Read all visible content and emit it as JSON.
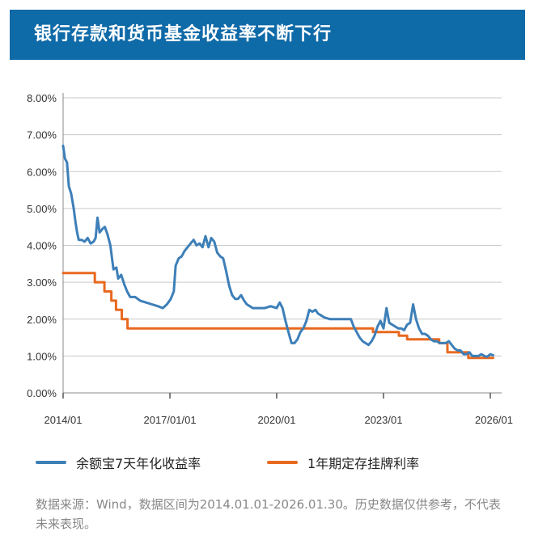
{
  "header": {
    "title": "银行存款和货币基金收益率不断下行"
  },
  "chart_data": {
    "type": "line",
    "title": "",
    "xlabel": "",
    "ylabel": "",
    "ylim": [
      0,
      8
    ],
    "xlim": [
      "2014-01-01",
      "2026-01-30"
    ],
    "grid": true,
    "legend_position": "bottom",
    "y_ticks": [
      "0.00%",
      "1.00%",
      "2.00%",
      "3.00%",
      "4.00%",
      "5.00%",
      "6.00%",
      "7.00%",
      "8.00%"
    ],
    "y_tick_values": [
      0,
      1,
      2,
      3,
      4,
      5,
      6,
      7,
      8
    ],
    "x_ticks": [
      "2014/01",
      "2017/01/01",
      "2020/01",
      "2023/01",
      "2026/01"
    ],
    "x_tick_dates": [
      "2014-01-01",
      "2017-01-01",
      "2020-01-01",
      "2023-01-01",
      "2026-01-01"
    ],
    "series": [
      {
        "name": "余额宝7天年化收益率",
        "color": "#3d7fb8",
        "points": [
          [
            "2014-01-01",
            6.7
          ],
          [
            "2014-01-20",
            6.35
          ],
          [
            "2014-02-10",
            6.25
          ],
          [
            "2014-03-01",
            5.6
          ],
          [
            "2014-03-25",
            5.4
          ],
          [
            "2014-04-20",
            5.0
          ],
          [
            "2014-05-10",
            4.6
          ],
          [
            "2014-05-25",
            4.35
          ],
          [
            "2014-06-10",
            4.15
          ],
          [
            "2014-07-10",
            4.15
          ],
          [
            "2014-08-10",
            4.1
          ],
          [
            "2014-09-10",
            4.2
          ],
          [
            "2014-10-10",
            4.05
          ],
          [
            "2014-11-10",
            4.1
          ],
          [
            "2014-12-01",
            4.2
          ],
          [
            "2014-12-20",
            4.75
          ],
          [
            "2015-01-10",
            4.35
          ],
          [
            "2015-02-10",
            4.45
          ],
          [
            "2015-03-05",
            4.5
          ],
          [
            "2015-04-01",
            4.3
          ],
          [
            "2015-05-01",
            4.0
          ],
          [
            "2015-06-01",
            3.35
          ],
          [
            "2015-07-01",
            3.4
          ],
          [
            "2015-07-20",
            3.1
          ],
          [
            "2015-08-20",
            3.2
          ],
          [
            "2015-09-20",
            2.95
          ],
          [
            "2015-10-20",
            2.75
          ],
          [
            "2015-11-20",
            2.6
          ],
          [
            "2016-01-10",
            2.6
          ],
          [
            "2016-03-01",
            2.5
          ],
          [
            "2016-05-01",
            2.45
          ],
          [
            "2016-07-01",
            2.4
          ],
          [
            "2016-09-01",
            2.35
          ],
          [
            "2016-10-20",
            2.3
          ],
          [
            "2016-12-01",
            2.4
          ],
          [
            "2017-01-10",
            2.55
          ],
          [
            "2017-02-10",
            2.75
          ],
          [
            "2017-03-01",
            3.45
          ],
          [
            "2017-04-01",
            3.65
          ],
          [
            "2017-05-01",
            3.7
          ],
          [
            "2017-06-01",
            3.85
          ],
          [
            "2017-07-01",
            3.95
          ],
          [
            "2017-08-01",
            4.05
          ],
          [
            "2017-09-01",
            4.15
          ],
          [
            "2017-10-01",
            4.0
          ],
          [
            "2017-11-01",
            4.05
          ],
          [
            "2017-12-01",
            3.95
          ],
          [
            "2018-01-01",
            4.25
          ],
          [
            "2018-02-01",
            3.95
          ],
          [
            "2018-03-01",
            4.2
          ],
          [
            "2018-04-01",
            4.1
          ],
          [
            "2018-05-01",
            3.8
          ],
          [
            "2018-06-01",
            3.7
          ],
          [
            "2018-07-01",
            3.65
          ],
          [
            "2018-08-01",
            3.3
          ],
          [
            "2018-09-01",
            2.9
          ],
          [
            "2018-10-01",
            2.65
          ],
          [
            "2018-11-01",
            2.55
          ],
          [
            "2018-12-01",
            2.55
          ],
          [
            "2019-01-01",
            2.65
          ],
          [
            "2019-02-01",
            2.5
          ],
          [
            "2019-03-01",
            2.4
          ],
          [
            "2019-04-01",
            2.35
          ],
          [
            "2019-05-01",
            2.3
          ],
          [
            "2019-07-01",
            2.3
          ],
          [
            "2019-09-01",
            2.3
          ],
          [
            "2019-11-01",
            2.35
          ],
          [
            "2020-01-01",
            2.3
          ],
          [
            "2020-02-01",
            2.45
          ],
          [
            "2020-03-01",
            2.3
          ],
          [
            "2020-04-01",
            1.95
          ],
          [
            "2020-05-01",
            1.65
          ],
          [
            "2020-06-01",
            1.35
          ],
          [
            "2020-07-01",
            1.35
          ],
          [
            "2020-08-01",
            1.45
          ],
          [
            "2020-09-01",
            1.65
          ],
          [
            "2020-10-01",
            1.75
          ],
          [
            "2020-11-01",
            1.95
          ],
          [
            "2020-12-01",
            2.25
          ],
          [
            "2021-01-01",
            2.2
          ],
          [
            "2021-02-01",
            2.25
          ],
          [
            "2021-03-01",
            2.15
          ],
          [
            "2021-04-01",
            2.1
          ],
          [
            "2021-05-01",
            2.05
          ],
          [
            "2021-07-01",
            2.0
          ],
          [
            "2021-09-01",
            2.0
          ],
          [
            "2021-11-01",
            2.0
          ],
          [
            "2022-01-01",
            2.0
          ],
          [
            "2022-02-01",
            2.0
          ],
          [
            "2022-03-01",
            1.8
          ],
          [
            "2022-04-01",
            1.65
          ],
          [
            "2022-05-01",
            1.5
          ],
          [
            "2022-06-01",
            1.4
          ],
          [
            "2022-07-01",
            1.35
          ],
          [
            "2022-08-01",
            1.3
          ],
          [
            "2022-09-01",
            1.4
          ],
          [
            "2022-10-01",
            1.55
          ],
          [
            "2022-11-01",
            1.8
          ],
          [
            "2022-12-01",
            1.95
          ],
          [
            "2023-01-01",
            1.75
          ],
          [
            "2023-02-01",
            2.3
          ],
          [
            "2023-03-01",
            1.9
          ],
          [
            "2023-04-01",
            1.85
          ],
          [
            "2023-05-01",
            1.8
          ],
          [
            "2023-06-01",
            1.75
          ],
          [
            "2023-07-01",
            1.75
          ],
          [
            "2023-08-01",
            1.7
          ],
          [
            "2023-09-01",
            1.85
          ],
          [
            "2023-10-01",
            1.9
          ],
          [
            "2023-11-01",
            2.4
          ],
          [
            "2023-12-01",
            2.0
          ],
          [
            "2024-01-01",
            1.75
          ],
          [
            "2024-02-01",
            1.6
          ],
          [
            "2024-03-01",
            1.6
          ],
          [
            "2024-04-01",
            1.55
          ],
          [
            "2024-05-01",
            1.45
          ],
          [
            "2024-06-01",
            1.4
          ],
          [
            "2024-07-01",
            1.4
          ],
          [
            "2024-08-01",
            1.35
          ],
          [
            "2024-09-01",
            1.35
          ],
          [
            "2024-10-01",
            1.35
          ],
          [
            "2024-11-01",
            1.4
          ],
          [
            "2024-12-01",
            1.3
          ],
          [
            "2025-01-01",
            1.2
          ],
          [
            "2025-02-01",
            1.15
          ],
          [
            "2025-03-01",
            1.15
          ],
          [
            "2025-04-01",
            1.05
          ],
          [
            "2025-05-01",
            1.05
          ],
          [
            "2025-06-01",
            1.1
          ],
          [
            "2025-07-01",
            1.0
          ],
          [
            "2025-08-01",
            1.0
          ],
          [
            "2025-09-01",
            1.0
          ],
          [
            "2025-10-01",
            1.05
          ],
          [
            "2025-11-01",
            1.0
          ],
          [
            "2025-12-01",
            0.98
          ],
          [
            "2026-01-01",
            1.05
          ],
          [
            "2026-01-30",
            1.02
          ]
        ]
      },
      {
        "name": "1年期定存挂牌利率",
        "color": "#e8691f",
        "points": [
          [
            "2014-01-01",
            3.25
          ],
          [
            "2014-11-22",
            3.25
          ],
          [
            "2014-11-22",
            3.0
          ],
          [
            "2015-03-01",
            3.0
          ],
          [
            "2015-03-01",
            2.75
          ],
          [
            "2015-05-11",
            2.75
          ],
          [
            "2015-05-11",
            2.5
          ],
          [
            "2015-06-28",
            2.5
          ],
          [
            "2015-06-28",
            2.25
          ],
          [
            "2015-08-26",
            2.25
          ],
          [
            "2015-08-26",
            2.0
          ],
          [
            "2015-10-24",
            2.0
          ],
          [
            "2015-10-24",
            1.75
          ],
          [
            "2022-09-15",
            1.75
          ],
          [
            "2022-09-15",
            1.65
          ],
          [
            "2023-06-08",
            1.65
          ],
          [
            "2023-06-08",
            1.55
          ],
          [
            "2023-09-01",
            1.55
          ],
          [
            "2023-09-01",
            1.45
          ],
          [
            "2024-07-25",
            1.45
          ],
          [
            "2024-07-25",
            1.35
          ],
          [
            "2024-10-18",
            1.35
          ],
          [
            "2024-10-18",
            1.1
          ],
          [
            "2025-05-20",
            1.1
          ],
          [
            "2025-05-20",
            0.95
          ],
          [
            "2026-01-30",
            0.95
          ]
        ]
      }
    ]
  },
  "legend": {
    "items": [
      {
        "label": "余额宝7天年化收益率",
        "color": "#3d7fb8"
      },
      {
        "label": "1年期定存挂牌利率",
        "color": "#e8691f"
      }
    ]
  },
  "footnote": {
    "text": "数据来源：Wind，数据区间为2014.01.01-2026.01.30。历史数据仅供参考，不代表未来表现。"
  }
}
